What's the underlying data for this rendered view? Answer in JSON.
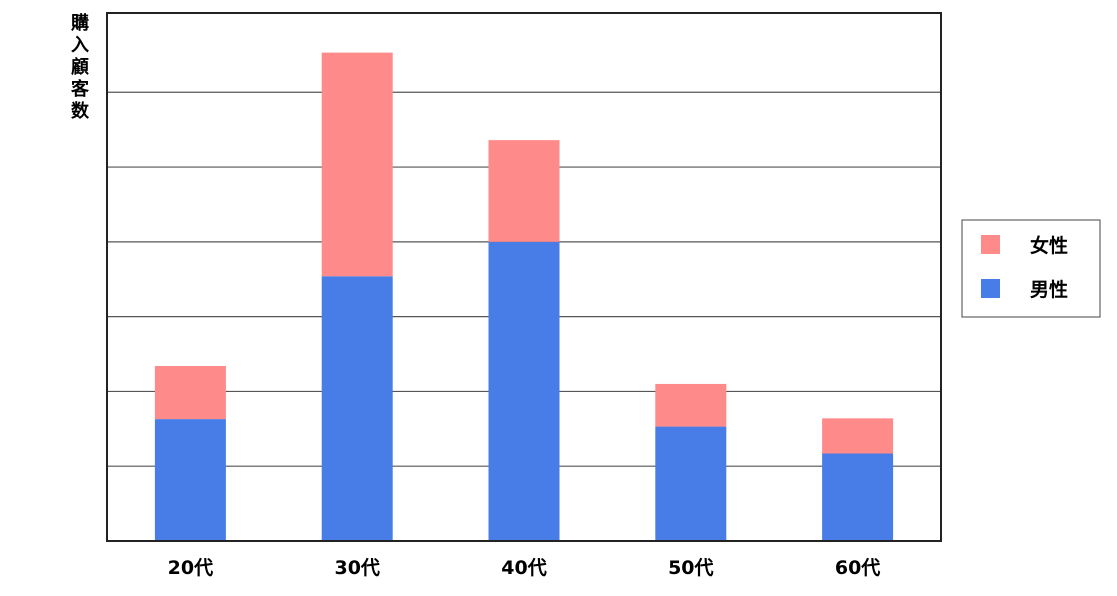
{
  "chart_data": {
    "type": "bar",
    "stacked": true,
    "ylabel": "購入顧客数",
    "xlabel": "",
    "title": "",
    "categories": [
      "20代",
      "30代",
      "40代",
      "50代",
      "60代"
    ],
    "series": [
      {
        "name": "男性",
        "color": "#487de7",
        "values": [
          1.63,
          3.54,
          4.0,
          1.53,
          1.17
        ]
      },
      {
        "name": "女性",
        "color": "#ff8a8a",
        "values": [
          0.71,
          2.99,
          1.36,
          0.57,
          0.47
        ]
      }
    ],
    "ylim": [
      0,
      7.06
    ],
    "gridlines": [
      1,
      2,
      3,
      4,
      5,
      6
    ],
    "grid": true,
    "legend": {
      "placement": "right",
      "order": [
        "女性",
        "男性"
      ]
    }
  }
}
